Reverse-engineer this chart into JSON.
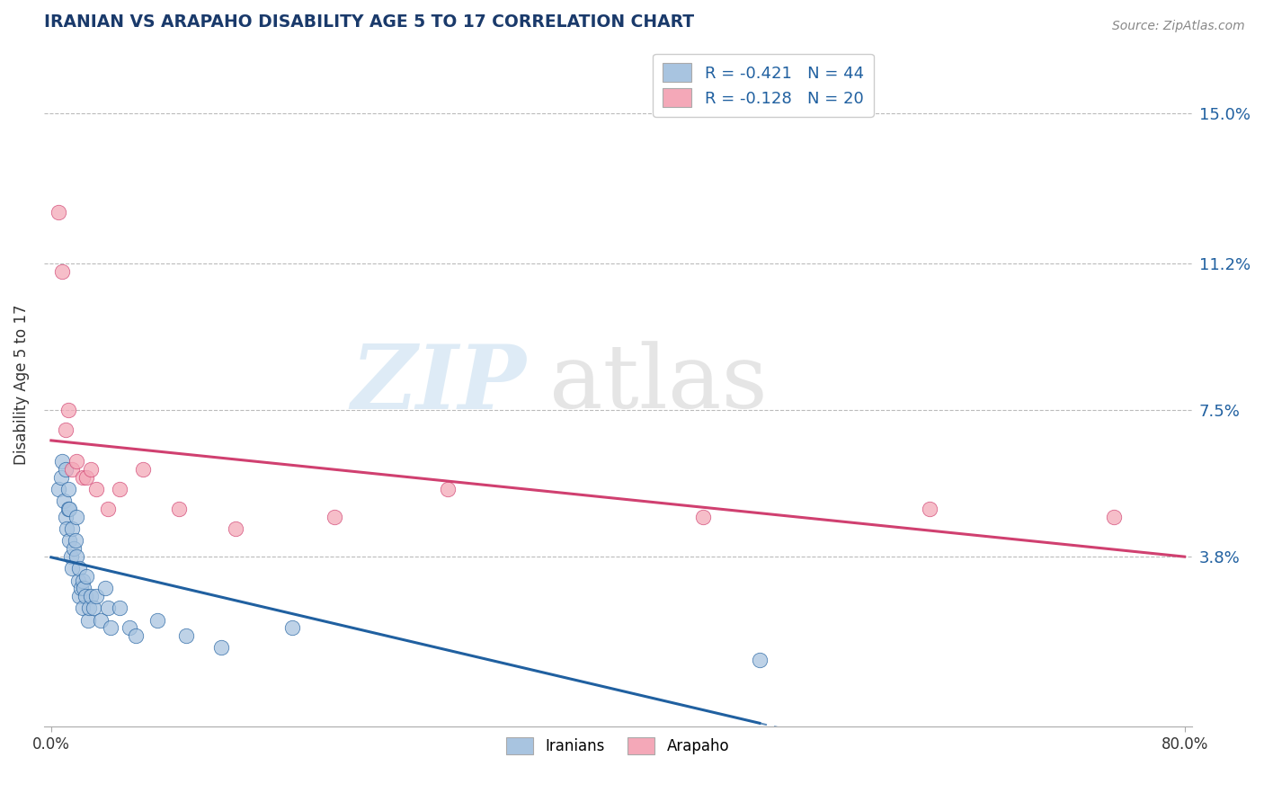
{
  "title": "IRANIAN VS ARAPAHO DISABILITY AGE 5 TO 17 CORRELATION CHART",
  "source": "Source: ZipAtlas.com",
  "xlabel_iranians": "Iranians",
  "xlabel_arapaho": "Arapaho",
  "ylabel": "Disability Age 5 to 17",
  "xlim": [
    -0.005,
    0.805
  ],
  "ylim": [
    -0.005,
    0.168
  ],
  "x_tick_labels": [
    "0.0%",
    "80.0%"
  ],
  "x_tick_vals": [
    0.0,
    0.8
  ],
  "y_tick_labels": [
    "15.0%",
    "11.2%",
    "7.5%",
    "3.8%"
  ],
  "y_tick_vals": [
    0.15,
    0.112,
    0.075,
    0.038
  ],
  "r_iranian": -0.421,
  "n_iranian": 44,
  "r_arapaho": -0.128,
  "n_arapaho": 20,
  "color_iranian": "#a8c4e0",
  "color_arapaho": "#f4a8b8",
  "line_color_iranian": "#2060a0",
  "line_color_arapaho": "#d04070",
  "background_color": "#ffffff",
  "iranians_x": [
    0.005,
    0.007,
    0.008,
    0.009,
    0.01,
    0.01,
    0.011,
    0.012,
    0.012,
    0.013,
    0.013,
    0.014,
    0.015,
    0.015,
    0.016,
    0.017,
    0.018,
    0.018,
    0.019,
    0.02,
    0.02,
    0.021,
    0.022,
    0.022,
    0.023,
    0.024,
    0.025,
    0.026,
    0.027,
    0.028,
    0.03,
    0.032,
    0.035,
    0.038,
    0.04,
    0.042,
    0.048,
    0.055,
    0.06,
    0.075,
    0.095,
    0.12,
    0.17,
    0.5
  ],
  "iranians_y": [
    0.055,
    0.058,
    0.062,
    0.052,
    0.048,
    0.06,
    0.045,
    0.05,
    0.055,
    0.042,
    0.05,
    0.038,
    0.035,
    0.045,
    0.04,
    0.042,
    0.038,
    0.048,
    0.032,
    0.035,
    0.028,
    0.03,
    0.032,
    0.025,
    0.03,
    0.028,
    0.033,
    0.022,
    0.025,
    0.028,
    0.025,
    0.028,
    0.022,
    0.03,
    0.025,
    0.02,
    0.025,
    0.02,
    0.018,
    0.022,
    0.018,
    0.015,
    0.02,
    0.012
  ],
  "arapaho_x": [
    0.005,
    0.008,
    0.01,
    0.012,
    0.015,
    0.018,
    0.022,
    0.025,
    0.028,
    0.032,
    0.04,
    0.048,
    0.065,
    0.09,
    0.13,
    0.2,
    0.28,
    0.46,
    0.62,
    0.75
  ],
  "arapaho_y": [
    0.125,
    0.11,
    0.07,
    0.075,
    0.06,
    0.062,
    0.058,
    0.058,
    0.06,
    0.055,
    0.05,
    0.055,
    0.06,
    0.05,
    0.045,
    0.048,
    0.055,
    0.048,
    0.05,
    0.048
  ]
}
